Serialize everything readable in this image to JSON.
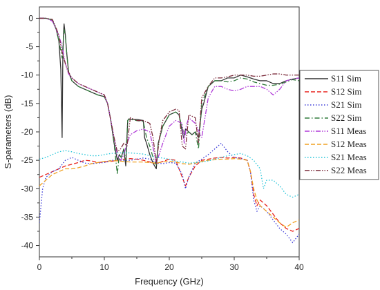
{
  "chart_data": {
    "type": "line",
    "title": "",
    "xlabel": "Frequency (GHz)",
    "ylabel": "S-parameters (dB)",
    "xlim": [
      0,
      40
    ],
    "ylim": [
      -42,
      2
    ],
    "xticks": [
      0,
      10,
      20,
      30,
      40
    ],
    "yticks": [
      0,
      -5,
      -10,
      -15,
      -20,
      -25,
      -30,
      -35,
      -40
    ],
    "grid": false,
    "legend_position": "right",
    "series": [
      {
        "name": "S11 Sim",
        "color": "#333333",
        "dash": "solid",
        "x": [
          0,
          1,
          2,
          2.6,
          3,
          3.3,
          3.5,
          3.6,
          3.7,
          3.8,
          4,
          4.2,
          4.5,
          5,
          6,
          7,
          8,
          9,
          10,
          10.5,
          11,
          11.5,
          12,
          12.3,
          12.6,
          13,
          13.3,
          13.6,
          13.8,
          14,
          15,
          16,
          16.2,
          16.5,
          17,
          17.5,
          18,
          18.3,
          19,
          20,
          21,
          21.5,
          22,
          22.2,
          22.5,
          23,
          23.5,
          24,
          24.5,
          25,
          25.3,
          26,
          27,
          28,
          29,
          30,
          31,
          32,
          33,
          34,
          35,
          36,
          37,
          38,
          39,
          40
        ],
        "y": [
          0,
          0,
          -0.3,
          -2,
          -4,
          -9,
          -21,
          -8,
          -3,
          -1,
          -3,
          -6,
          -9.5,
          -11,
          -12,
          -12.5,
          -13,
          -13.5,
          -13.8,
          -15,
          -18,
          -22,
          -25,
          -24,
          -24.5,
          -23,
          -26,
          -18,
          -17.7,
          -17.8,
          -17.8,
          -18,
          -21,
          -22,
          -24,
          -25.5,
          -26.5,
          -22,
          -19,
          -17,
          -16.5,
          -17,
          -20,
          -21,
          -19.5,
          -20,
          -20.5,
          -20,
          -21,
          -16,
          -15,
          -12,
          -11,
          -11,
          -10.5,
          -10.5,
          -10,
          -10.3,
          -10.7,
          -11,
          -11,
          -11.5,
          -11.5,
          -11,
          -10.7,
          -10.5
        ]
      },
      {
        "name": "S12 Sim",
        "color": "#e8231e",
        "dash": "dashed",
        "x": [
          0,
          1,
          2,
          3,
          4,
          5,
          6,
          7,
          8,
          9,
          10,
          11,
          12,
          13,
          14,
          15,
          16,
          17,
          18,
          19,
          20,
          21,
          22,
          22.5,
          23,
          24,
          25,
          26,
          27,
          28,
          29,
          30,
          31,
          32,
          32.5,
          33,
          33.5,
          34,
          35,
          36,
          37,
          38,
          39,
          40
        ],
        "y": [
          -28,
          -27.5,
          -27,
          -26.5,
          -26,
          -25.7,
          -25.4,
          -25,
          -25.1,
          -25.4,
          -25.3,
          -25.2,
          -25,
          -24.8,
          -24.7,
          -24.8,
          -25,
          -25.3,
          -25.6,
          -25.2,
          -24.8,
          -25,
          -28,
          -29.5,
          -28,
          -26,
          -25,
          -24.8,
          -24.6,
          -24.5,
          -24.6,
          -24.5,
          -24.6,
          -25,
          -27,
          -31,
          -33,
          -32,
          -33,
          -34.5,
          -36,
          -37,
          -37.5,
          -37
        ]
      },
      {
        "name": "S21 Sim",
        "color": "#3a3ad8",
        "dash": "dotted",
        "x": [
          0,
          0.5,
          1,
          2,
          3,
          4,
          5,
          6,
          7,
          8,
          9,
          10,
          11,
          12,
          13,
          14,
          15,
          16,
          17,
          18,
          19,
          20,
          21,
          22,
          22.5,
          23,
          24,
          25,
          26,
          27,
          28,
          29,
          30,
          31,
          32,
          32.5,
          33,
          33.5,
          34,
          35,
          36,
          37,
          38,
          39,
          40
        ],
        "y": [
          -36,
          -30,
          -28,
          -27,
          -26.5,
          -25,
          -24.5,
          -25,
          -25.5,
          -25.6,
          -25.5,
          -25.4,
          -25,
          -25,
          -25,
          -25,
          -24.8,
          -24.6,
          -24.8,
          -25.5,
          -25.6,
          -25.4,
          -25.5,
          -27.5,
          -30,
          -28,
          -25.5,
          -24.8,
          -24,
          -23,
          -22,
          -23.5,
          -24.5,
          -24.7,
          -25,
          -27,
          -32,
          -34,
          -33,
          -34,
          -35.5,
          -37,
          -38,
          -39.5,
          -38
        ]
      },
      {
        "name": "S22 Sim",
        "color": "#2f7a3a",
        "dash": "dashdot",
        "x": [
          0,
          1,
          2,
          2.6,
          3,
          3.5,
          3.8,
          4,
          4.2,
          4.5,
          5,
          6,
          7,
          8,
          9,
          10,
          10.5,
          11,
          11.5,
          12,
          12.3,
          12.6,
          13,
          13.3,
          13.6,
          13.8,
          14,
          15,
          16,
          16.5,
          17,
          17.5,
          18,
          18.3,
          19,
          20,
          21,
          21.5,
          22,
          22.5,
          23,
          23.5,
          24,
          24.5,
          25,
          26,
          27,
          28,
          29,
          30,
          31,
          32,
          33,
          34,
          35,
          36,
          37,
          38,
          39,
          40
        ],
        "y": [
          0,
          0,
          -0.3,
          -2,
          -4,
          -7,
          -2,
          -3,
          -6,
          -9.5,
          -11,
          -12,
          -12.5,
          -13,
          -13.5,
          -13.8,
          -15,
          -18,
          -22,
          -27.5,
          -24,
          -24.5,
          -23,
          -25,
          -18,
          -17.8,
          -17.8,
          -18,
          -18.2,
          -21,
          -22.5,
          -24.5,
          -25.8,
          -22,
          -19,
          -17,
          -16.5,
          -17,
          -19.5,
          -20.5,
          -20,
          -20.5,
          -20,
          -23,
          -15,
          -12,
          -11,
          -11,
          -11.2,
          -11,
          -10.5,
          -10.7,
          -11.2,
          -11.5,
          -11.8,
          -11.8,
          -11.6,
          -11.2,
          -10.8,
          -11
        ]
      },
      {
        "name": "S11 Meas",
        "color": "#b03ad8",
        "dash": "dashdotdot",
        "x": [
          0,
          1,
          2,
          3,
          3.5,
          4,
          4.5,
          5,
          6,
          7,
          8,
          9,
          10,
          10.5,
          11,
          11.5,
          12,
          12.5,
          13,
          13.5,
          14,
          15,
          16,
          17,
          18,
          19,
          20,
          21,
          22,
          22.3,
          22.6,
          23,
          24,
          25,
          26,
          27,
          28,
          29,
          30,
          31,
          32,
          33,
          34,
          35,
          36,
          37,
          38,
          39,
          40
        ],
        "y": [
          0,
          0,
          -0.5,
          -3,
          -5,
          -8,
          -9.8,
          -10.5,
          -11.5,
          -12,
          -12.5,
          -13,
          -13.5,
          -15,
          -18,
          -21,
          -24,
          -25,
          -24,
          -22,
          -20.5,
          -19.8,
          -19.5,
          -20,
          -25.5,
          -22,
          -19,
          -18,
          -18.5,
          -22,
          -19,
          -17.5,
          -18.5,
          -21,
          -14,
          -12,
          -12,
          -12.5,
          -12.8,
          -12.5,
          -12,
          -12,
          -12,
          -12.5,
          -13.5,
          -12.5,
          -11,
          -10.7,
          -10.5
        ]
      },
      {
        "name": "S12 Meas",
        "color": "#f0a020",
        "dash": "dashed",
        "x": [
          0,
          1,
          2,
          3,
          4,
          5,
          6,
          7,
          8,
          9,
          10,
          11,
          12,
          13,
          14,
          15,
          16,
          17,
          18,
          19,
          20,
          21,
          22,
          23,
          24,
          25,
          26,
          27,
          28,
          29,
          30,
          31,
          32,
          32.5,
          33,
          33.5,
          34,
          35,
          36,
          37,
          38,
          39,
          40
        ],
        "y": [
          -29.5,
          -28.5,
          -27.5,
          -27,
          -26.5,
          -26.5,
          -26.3,
          -26,
          -25.6,
          -25.4,
          -25.2,
          -25.1,
          -25.1,
          -25.2,
          -25.3,
          -25.3,
          -25.3,
          -25.4,
          -25.5,
          -25.3,
          -25.2,
          -25.3,
          -25.6,
          -25.7,
          -25.5,
          -25.2,
          -25,
          -24.9,
          -24.8,
          -24.8,
          -24.7,
          -24.8,
          -25,
          -27,
          -30,
          -32,
          -33,
          -34,
          -35,
          -36,
          -36.8,
          -36,
          -35.5
        ]
      },
      {
        "name": "S21 Meas",
        "color": "#22c4d8",
        "dash": "dotted",
        "x": [
          0,
          1,
          2,
          3,
          4,
          5,
          6,
          7,
          8,
          9,
          10,
          11,
          12,
          13,
          14,
          15,
          16,
          17,
          18,
          19,
          20,
          21,
          22,
          23,
          24,
          25,
          26,
          27,
          28,
          29,
          30,
          31,
          32,
          33,
          34,
          34.5,
          35,
          36,
          37,
          38,
          39,
          40
        ],
        "y": [
          -24.8,
          -24.5,
          -24,
          -23.5,
          -23.3,
          -23.5,
          -23.8,
          -24,
          -24.2,
          -24.2,
          -24,
          -23.8,
          -23.7,
          -23.7,
          -23.7,
          -23.8,
          -23.9,
          -24.2,
          -24.5,
          -24.6,
          -24.8,
          -25.2,
          -25.3,
          -25.5,
          -25.4,
          -25.3,
          -25.1,
          -24.8,
          -24.5,
          -24.2,
          -24,
          -23.8,
          -24.2,
          -25,
          -26.5,
          -30,
          -28.5,
          -28.5,
          -29.5,
          -31,
          -31.5,
          -31
        ]
      },
      {
        "name": "S22 Meas",
        "color": "#7a2a3a",
        "dash": "dashdotdot",
        "x": [
          0,
          1,
          2,
          2.5,
          3,
          3.5,
          4,
          4.5,
          5,
          6,
          7,
          8,
          9,
          10,
          10.5,
          11,
          11.5,
          12,
          12.5,
          13,
          13.5,
          14,
          15,
          16,
          17,
          17.5,
          18,
          18.5,
          19,
          20,
          21,
          21.5,
          22,
          22.5,
          23,
          24,
          24.5,
          25,
          26,
          27,
          28,
          29,
          30,
          31,
          32,
          33,
          34,
          35,
          36,
          37,
          38,
          39,
          40
        ],
        "y": [
          0,
          0,
          -0.2,
          -1.5,
          -3,
          -6,
          -8,
          -9.5,
          -10.5,
          -11.5,
          -12,
          -12.5,
          -13,
          -13.5,
          -15,
          -18,
          -21,
          -23.5,
          -23,
          -22,
          -22.5,
          -17.5,
          -18,
          -18,
          -18.5,
          -21,
          -25.5,
          -21,
          -18,
          -16.5,
          -16,
          -16.2,
          -22.5,
          -23,
          -17,
          -17.5,
          -22,
          -14,
          -12,
          -10.5,
          -10.5,
          -10.3,
          -10,
          -10,
          -10,
          -10.2,
          -10.2,
          -10,
          -9.8,
          -9.8,
          -10,
          -10,
          -10
        ]
      }
    ]
  }
}
